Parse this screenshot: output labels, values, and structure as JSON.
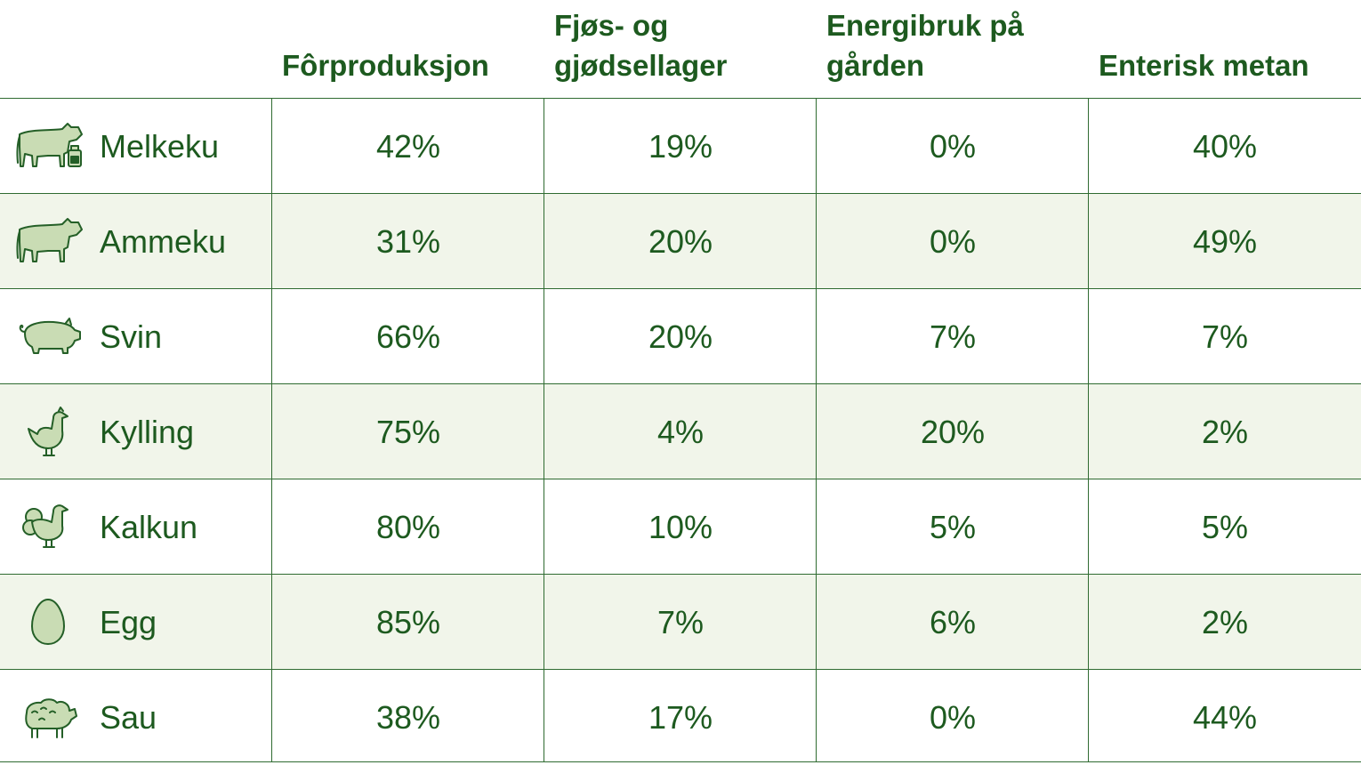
{
  "table": {
    "headers": [
      "",
      "Fôrproduksjon",
      "Fjøs- og\ngjødsellager",
      "Energibruk på\ngården",
      "Enterisk metan"
    ],
    "rows": [
      {
        "icon": "dairy-cow-icon",
        "name": "Melkeku",
        "values": [
          "42%",
          "19%",
          "0%",
          "40%"
        ]
      },
      {
        "icon": "cow-icon",
        "name": "Ammeku",
        "values": [
          "31%",
          "20%",
          "0%",
          "49%"
        ]
      },
      {
        "icon": "pig-icon",
        "name": "Svin",
        "values": [
          "66%",
          "20%",
          "7%",
          "7%"
        ]
      },
      {
        "icon": "chicken-icon",
        "name": "Kylling",
        "values": [
          "75%",
          "4%",
          "20%",
          "2%"
        ]
      },
      {
        "icon": "turkey-icon",
        "name": "Kalkun",
        "values": [
          "80%",
          "10%",
          "5%",
          "5%"
        ]
      },
      {
        "icon": "egg-icon",
        "name": "Egg",
        "values": [
          "85%",
          "7%",
          "6%",
          "2%"
        ]
      },
      {
        "icon": "sheep-icon",
        "name": "Sau",
        "values": [
          "38%",
          "17%",
          "0%",
          "44%"
        ]
      }
    ]
  },
  "colors": {
    "text": "#1d5a1f",
    "lines": "#2f6b31",
    "stripe": "#f1f5ea",
    "icon_fill": "#c9dcb4",
    "icon_stroke": "#245f27"
  }
}
